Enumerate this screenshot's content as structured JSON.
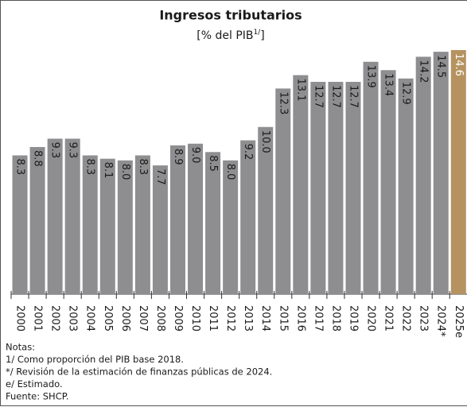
{
  "chart_data": {
    "type": "bar",
    "title": "Ingresos tributarios",
    "subtitle": [
      "[% del PIB",
      "1/",
      "]"
    ],
    "categories": [
      "2000",
      "2001",
      "2002",
      "2003",
      "2004",
      "2005",
      "2006",
      "2007",
      "2008",
      "2009",
      "2010",
      "2011",
      "2012",
      "2013",
      "2014",
      "2015",
      "2016",
      "2017",
      "2018",
      "2019",
      "2020",
      "2021",
      "2022",
      "2023",
      "2024*",
      "2025e"
    ],
    "values": [
      8.3,
      8.8,
      9.3,
      9.3,
      8.3,
      8.1,
      8.0,
      8.3,
      7.7,
      8.9,
      9.0,
      8.5,
      8.0,
      9.2,
      10.0,
      12.3,
      13.1,
      12.7,
      12.7,
      12.7,
      13.9,
      13.4,
      12.9,
      14.2,
      14.5,
      14.6
    ],
    "value_labels": [
      "8.3",
      "8.8",
      "9.3",
      "9.3",
      "8.3",
      "8.1",
      "8.0",
      "8.3",
      "7.7",
      "8.9",
      "9.0",
      "8.5",
      "8.0",
      "9.2",
      "10.0",
      "12.3",
      "13.1",
      "12.7",
      "12.7",
      "12.7",
      "13.9",
      "13.4",
      "12.9",
      "14.2",
      "14.5",
      "14.6"
    ],
    "colors": [
      "#8e8e90",
      "#8e8e90",
      "#8e8e90",
      "#8e8e90",
      "#8e8e90",
      "#8e8e90",
      "#8e8e90",
      "#8e8e90",
      "#8e8e90",
      "#8e8e90",
      "#8e8e90",
      "#8e8e90",
      "#8e8e90",
      "#8e8e90",
      "#8e8e90",
      "#8e8e90",
      "#8e8e90",
      "#8e8e90",
      "#8e8e90",
      "#8e8e90",
      "#8e8e90",
      "#8e8e90",
      "#8e8e90",
      "#8e8e90",
      "#8e8e90",
      "#b5925f"
    ],
    "notes": [
      "Notas:",
      "1/ Como proporción del PIB base 2018.",
      "*/ Revisión de la estimación de finanzas públicas de 2024.",
      "e/ Estimado.",
      "Fuente: SHCP."
    ]
  }
}
